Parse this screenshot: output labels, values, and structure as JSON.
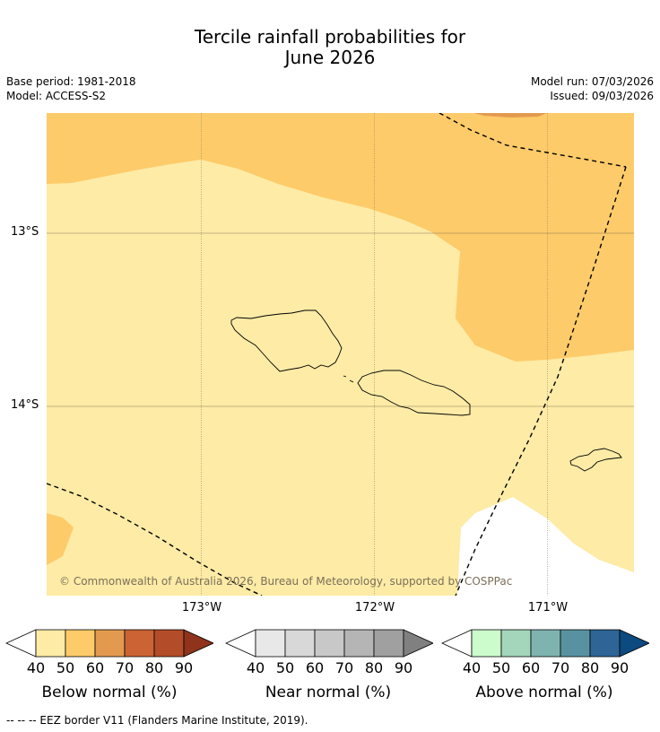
{
  "title": {
    "line1": "Tercile rainfall probabilities for",
    "line2": "June 2026"
  },
  "meta": {
    "base_period": "Base period: 1981-2018",
    "model": "Model: ACCESS-S2",
    "model_run": "Model run: 07/03/2026",
    "issued": "Issued: 09/03/2026"
  },
  "map": {
    "copyright": "© Commonwealth of Australia 2026, Bureau of Meteorology, supported by COSPPac",
    "lat_labels": [
      "13°S",
      "14°S"
    ],
    "lon_labels": [
      "173°W",
      "172°W",
      "171°W"
    ],
    "colors": {
      "below_50": "#fdeba6",
      "below_60": "#fdcb69",
      "below_70": "#e39a4f",
      "sea_white": "#ffffff",
      "grid": "#8a7a55",
      "coast": "#000000"
    }
  },
  "colorbars": [
    {
      "title": "Below normal (%)",
      "ticks": [
        "40",
        "50",
        "60",
        "70",
        "80",
        "90"
      ],
      "colors": [
        "#ffffff",
        "#fdeba6",
        "#fdcb69",
        "#e39a4f",
        "#cc6334",
        "#b34c29",
        "#8f331d"
      ]
    },
    {
      "title": "Near normal (%)",
      "ticks": [
        "40",
        "50",
        "60",
        "70",
        "80",
        "90"
      ],
      "colors": [
        "#ffffff",
        "#e8e8e8",
        "#d8d8d8",
        "#c8c8c8",
        "#b5b5b5",
        "#a0a0a0",
        "#808080"
      ]
    },
    {
      "title": "Above normal (%)",
      "ticks": [
        "40",
        "50",
        "60",
        "70",
        "80",
        "90"
      ],
      "colors": [
        "#ffffff",
        "#ccfccc",
        "#a4d6bc",
        "#7fb3b0",
        "#5892a0",
        "#2f6496",
        "#0c4a80"
      ]
    }
  ],
  "footer": "--  --  -- EEZ border V11 (Flanders Marine Institute, 2019)."
}
